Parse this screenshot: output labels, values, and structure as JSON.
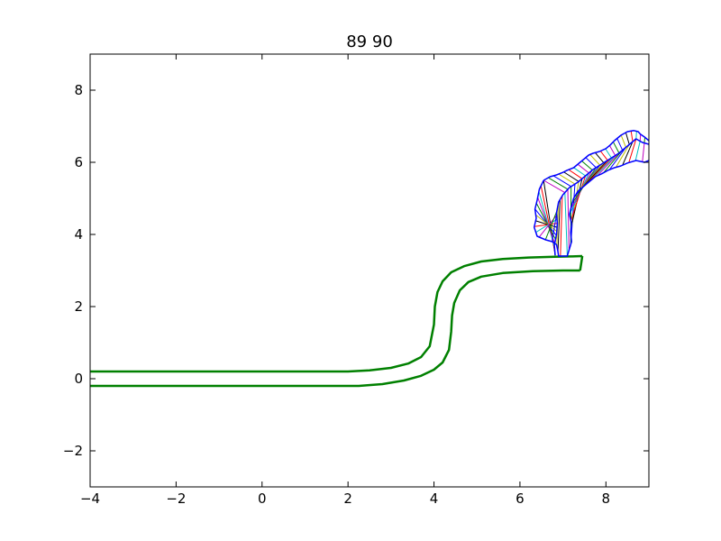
{
  "chart_data": {
    "type": "line",
    "title": "89 90",
    "xlabel": "",
    "ylabel": "",
    "xlim": [
      -4,
      9
    ],
    "ylim": [
      -3,
      9
    ],
    "x_ticks": [
      -4,
      -2,
      0,
      2,
      4,
      6,
      8
    ],
    "y_ticks": [
      -2,
      0,
      2,
      4,
      6,
      8
    ],
    "x_tick_labels": [
      "−4",
      "−2",
      "0",
      "2",
      "4",
      "6",
      "8"
    ],
    "y_tick_labels": [
      "−2",
      "0",
      "2",
      "4",
      "6",
      "8"
    ],
    "grid": false,
    "legend": "none",
    "series": [
      {
        "role": "channel-upper-edge",
        "color": "#008000",
        "points": [
          [
            -4,
            0.2
          ],
          [
            1.5,
            0.2
          ],
          [
            2.0,
            0.2
          ],
          [
            2.5,
            0.23
          ],
          [
            3.0,
            0.3
          ],
          [
            3.4,
            0.42
          ],
          [
            3.7,
            0.6
          ],
          [
            3.9,
            0.9
          ],
          [
            4.0,
            1.5
          ],
          [
            4.02,
            2.0
          ],
          [
            4.08,
            2.4
          ],
          [
            4.2,
            2.7
          ],
          [
            4.4,
            2.95
          ],
          [
            4.7,
            3.12
          ],
          [
            5.1,
            3.25
          ],
          [
            5.6,
            3.32
          ],
          [
            6.2,
            3.36
          ],
          [
            6.8,
            3.38
          ],
          [
            7.2,
            3.39
          ],
          [
            7.45,
            3.4
          ]
        ]
      },
      {
        "role": "channel-lower-edge",
        "color": "#008000",
        "points": [
          [
            -4,
            -0.2
          ],
          [
            1.5,
            -0.2
          ],
          [
            2.25,
            -0.2
          ],
          [
            2.8,
            -0.15
          ],
          [
            3.3,
            -0.05
          ],
          [
            3.7,
            0.08
          ],
          [
            4.0,
            0.25
          ],
          [
            4.2,
            0.45
          ],
          [
            4.35,
            0.8
          ],
          [
            4.4,
            1.3
          ],
          [
            4.42,
            1.75
          ],
          [
            4.47,
            2.1
          ],
          [
            4.6,
            2.45
          ],
          [
            4.8,
            2.68
          ],
          [
            5.1,
            2.83
          ],
          [
            5.6,
            2.93
          ],
          [
            6.3,
            2.98
          ],
          [
            7.0,
            3.0
          ],
          [
            7.4,
            3.0
          ]
        ]
      },
      {
        "role": "channel-end-cap",
        "color": "#008000",
        "points": [
          [
            7.4,
            3.0
          ],
          [
            7.45,
            3.4
          ]
        ]
      },
      {
        "role": "blob-outer-outline",
        "color": "#0000ff",
        "points": [
          [
            6.55,
            5.5
          ],
          [
            6.7,
            5.6
          ],
          [
            6.85,
            5.65
          ],
          [
            7.0,
            5.72
          ],
          [
            7.1,
            5.78
          ],
          [
            7.25,
            5.85
          ],
          [
            7.35,
            5.95
          ],
          [
            7.5,
            6.1
          ],
          [
            7.6,
            6.2
          ],
          [
            7.7,
            6.25
          ],
          [
            7.85,
            6.3
          ],
          [
            8.0,
            6.38
          ],
          [
            8.1,
            6.48
          ],
          [
            8.2,
            6.6
          ],
          [
            8.35,
            6.75
          ],
          [
            8.5,
            6.85
          ],
          [
            8.65,
            6.88
          ],
          [
            8.75,
            6.85
          ],
          [
            8.8,
            6.78
          ],
          [
            8.9,
            6.7
          ],
          [
            9.0,
            6.6
          ]
        ]
      },
      {
        "role": "blob-inner-outline",
        "color": "#0000ff",
        "points": [
          [
            6.55,
            5.5
          ],
          [
            6.45,
            5.25
          ],
          [
            6.4,
            4.95
          ],
          [
            6.35,
            4.7
          ],
          [
            6.38,
            4.45
          ],
          [
            6.33,
            4.2
          ],
          [
            6.4,
            3.95
          ],
          [
            6.6,
            3.85
          ],
          [
            6.75,
            3.8
          ],
          [
            6.85,
            3.72
          ],
          [
            6.88,
            3.55
          ],
          [
            6.9,
            3.4
          ],
          [
            7.1,
            3.4
          ],
          [
            7.15,
            3.6
          ],
          [
            7.2,
            3.8
          ],
          [
            7.18,
            4.05
          ],
          [
            7.2,
            4.3
          ],
          [
            7.15,
            4.55
          ],
          [
            7.2,
            4.8
          ],
          [
            7.25,
            5.0
          ],
          [
            7.35,
            5.2
          ],
          [
            7.5,
            5.35
          ],
          [
            7.65,
            5.5
          ],
          [
            7.75,
            5.6
          ],
          [
            7.9,
            5.68
          ],
          [
            8.05,
            5.78
          ],
          [
            8.2,
            5.85
          ],
          [
            8.35,
            5.9
          ],
          [
            8.5,
            5.98
          ],
          [
            8.7,
            6.05
          ],
          [
            8.9,
            6.0
          ],
          [
            9.0,
            6.05
          ]
        ]
      },
      {
        "role": "blob-midline-outline",
        "color": "#0000ff",
        "points": [
          [
            9.0,
            6.5
          ],
          [
            8.85,
            6.55
          ],
          [
            8.7,
            6.65
          ],
          [
            8.5,
            6.45
          ],
          [
            8.3,
            6.25
          ],
          [
            8.1,
            6.1
          ],
          [
            7.9,
            5.95
          ],
          [
            7.7,
            5.8
          ],
          [
            7.5,
            5.6
          ],
          [
            7.35,
            5.45
          ],
          [
            7.15,
            5.3
          ],
          [
            7.0,
            5.1
          ],
          [
            6.9,
            4.9
          ],
          [
            6.85,
            4.6
          ],
          [
            6.87,
            4.3
          ],
          [
            6.85,
            4.0
          ],
          [
            6.8,
            3.7
          ],
          [
            6.82,
            3.42
          ]
        ]
      }
    ],
    "hatch_colors": [
      "#000000",
      "#ff0000",
      "#00bfbf",
      "#bf00bf",
      "#008000",
      "#0000ff",
      "#bfbf00"
    ]
  }
}
